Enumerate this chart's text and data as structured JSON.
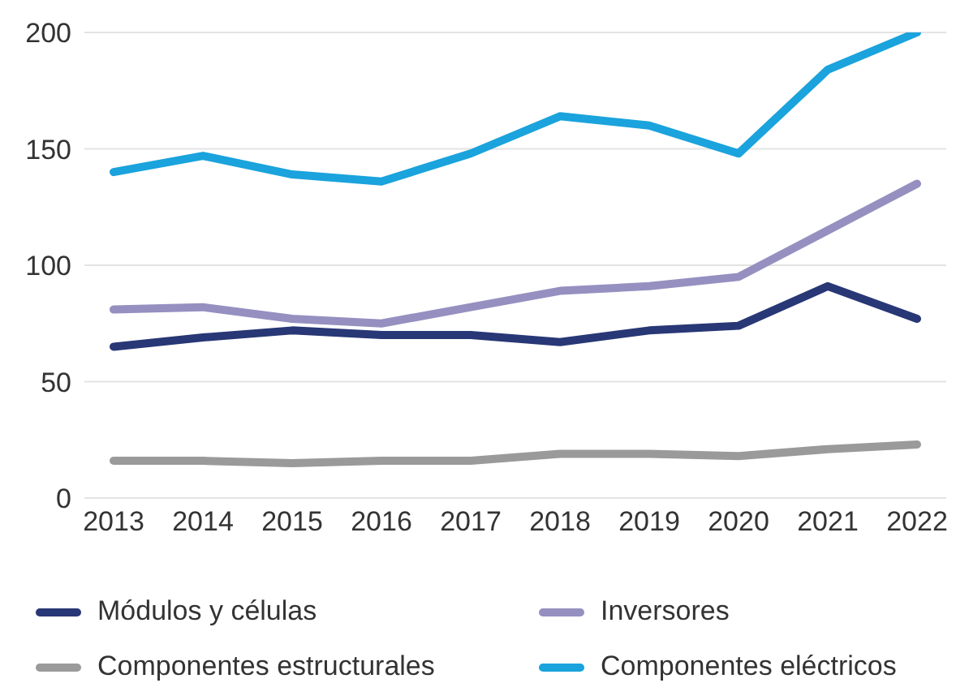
{
  "chart_data": {
    "type": "line",
    "categories": [
      "2013",
      "2014",
      "2015",
      "2016",
      "2017",
      "2018",
      "2019",
      "2020",
      "2021",
      "2022"
    ],
    "series": [
      {
        "name": "Módulos y células",
        "color": "#283775",
        "values": [
          65,
          69,
          72,
          70,
          70,
          67,
          72,
          74,
          91,
          77
        ]
      },
      {
        "name": "Inversores",
        "color": "#9590c0",
        "values": [
          81,
          82,
          77,
          75,
          82,
          89,
          91,
          95,
          115,
          135
        ]
      },
      {
        "name": "Componentes estructurales",
        "color": "#9a9a9a",
        "values": [
          16,
          16,
          15,
          16,
          16,
          19,
          19,
          18,
          21,
          23
        ]
      },
      {
        "name": "Componentes eléctricos",
        "color": "#1aa3dc",
        "values": [
          140,
          147,
          139,
          136,
          148,
          164,
          160,
          148,
          184,
          200
        ]
      }
    ],
    "ylim": [
      0,
      200
    ],
    "yticks": [
      0,
      50,
      100,
      150,
      200
    ],
    "grid": "y",
    "legend": "bottom",
    "marker": "none",
    "line_style": "solid"
  }
}
